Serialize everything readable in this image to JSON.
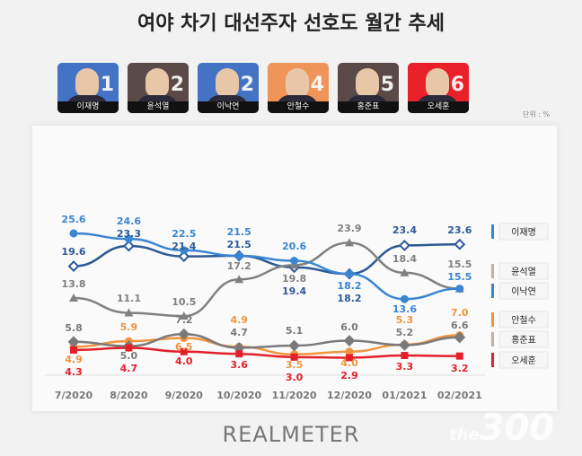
{
  "title": "여야 차기 대선주자 선호도 월간 추세",
  "unit": "단위 : %",
  "candidates": [
    {
      "name": "이재명",
      "rank": "1",
      "color": "#4472c4"
    },
    {
      "name": "윤석열",
      "rank": "2",
      "color": "#594a48"
    },
    {
      "name": "이낙연",
      "rank": "2",
      "color": "#4472c4"
    },
    {
      "name": "안철수",
      "rank": "4",
      "color": "#f0955a"
    },
    {
      "name": "홍준표",
      "rank": "5",
      "color": "#594a48"
    },
    {
      "name": "오세훈",
      "rank": "6",
      "color": "#e8202a"
    }
  ],
  "logo": "REALMETER",
  "watermark": {
    "small": "the",
    "big": "300"
  },
  "chart_data": {
    "type": "line",
    "categories": [
      "7/2020",
      "8/2020",
      "9/2020",
      "10/2020",
      "11/2020",
      "12/2020",
      "01/2021",
      "02/2021"
    ],
    "series": [
      {
        "name": "이재명",
        "color": "#2d5a96",
        "marker": "diamond-open",
        "values": [
          19.6,
          23.3,
          21.4,
          21.5,
          19.4,
          18.2,
          23.4,
          23.6
        ]
      },
      {
        "name": "윤석열",
        "color": "#808080",
        "marker": "triangle",
        "values": [
          13.8,
          11.1,
          10.5,
          17.2,
          19.8,
          23.9,
          18.4,
          15.5
        ]
      },
      {
        "name": "이낙연",
        "color": "#3a86d2",
        "marker": "circle",
        "values": [
          25.6,
          24.6,
          22.5,
          21.5,
          20.6,
          18.2,
          13.6,
          15.5
        ]
      },
      {
        "name": "안철수",
        "color": "#f0953e",
        "marker": "circle",
        "values": [
          4.9,
          5.9,
          6.5,
          4.9,
          3.5,
          4.0,
          5.3,
          7.0
        ]
      },
      {
        "name": "홍준표",
        "color": "#7a7a7a",
        "marker": "diamond",
        "values": [
          5.8,
          5.0,
          7.2,
          4.7,
          5.1,
          6.0,
          5.2,
          6.6
        ]
      },
      {
        "name": "오세훈",
        "color": "#e3202a",
        "marker": "square",
        "values": [
          4.3,
          4.7,
          4.0,
          3.6,
          3.0,
          2.9,
          3.3,
          3.2
        ]
      }
    ],
    "legend_colors": [
      "#3a86d2",
      "#c8b0a0",
      "#3a86d2",
      "#f0953e",
      "#c8b0a0",
      "#e3202a"
    ],
    "legend": "right",
    "grid": false
  }
}
